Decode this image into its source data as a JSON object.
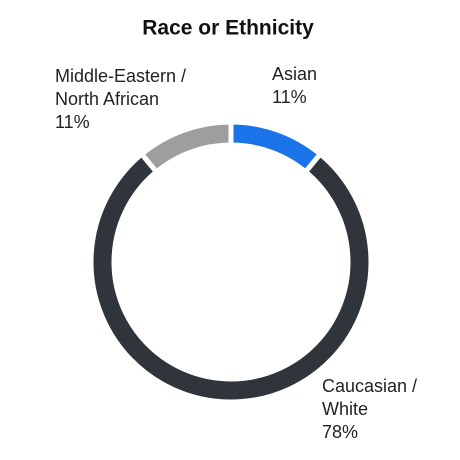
{
  "chart_data": {
    "type": "donut",
    "title": "Race or Ethnicity",
    "categories": [
      "Asian",
      "Caucasian / White",
      "Middle-Eastern / North African"
    ],
    "values": [
      11,
      78,
      11
    ],
    "value_labels": [
      "11%",
      "78%",
      "11%"
    ],
    "colors": [
      "#1a73e8",
      "#30343b",
      "#9e9e9e"
    ]
  }
}
